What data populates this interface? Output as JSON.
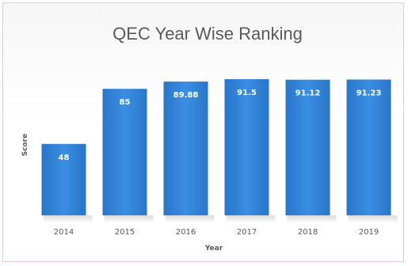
{
  "chart_data": {
    "type": "bar",
    "title": "QEC Year Wise Ranking",
    "xlabel": "Year",
    "ylabel": "Score",
    "categories": [
      "2014",
      "2015",
      "2016",
      "2017",
      "2018",
      "2019"
    ],
    "values": [
      48,
      85,
      89.88,
      91.5,
      91.12,
      91.23
    ],
    "data_labels": [
      "48",
      "85",
      "89.88",
      "91.5",
      "91.12",
      "91.23"
    ],
    "ylim": [
      0,
      100
    ],
    "grid": false,
    "legend": "none",
    "bar_color": "#2f80d6"
  }
}
